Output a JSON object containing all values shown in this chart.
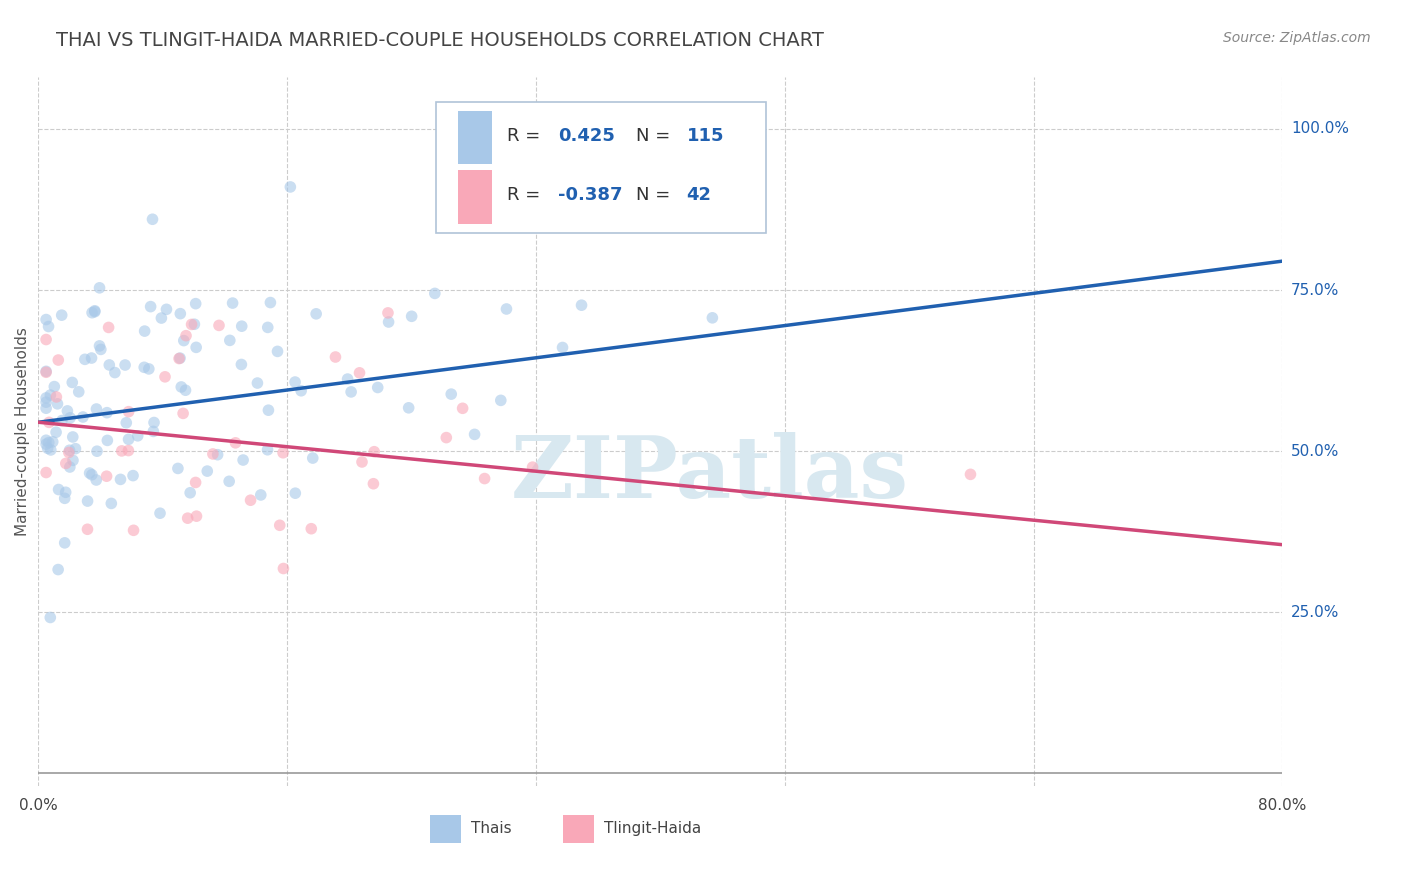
{
  "title": "THAI VS TLINGIT-HAIDA MARRIED-COUPLE HOUSEHOLDS CORRELATION CHART",
  "source": "Source: ZipAtlas.com",
  "ylabel": "Married-couple Households",
  "xlim": [
    0.0,
    0.8
  ],
  "ylim": [
    -0.02,
    1.08
  ],
  "yticks": [
    0.25,
    0.5,
    0.75,
    1.0
  ],
  "ytick_labels": [
    "25.0%",
    "50.0%",
    "75.0%",
    "100.0%"
  ],
  "xticks_grid": [
    0.0,
    0.16,
    0.32,
    0.48,
    0.64,
    0.8
  ],
  "thai_R": 0.425,
  "thai_N": 115,
  "tlingit_R": -0.387,
  "tlingit_N": 42,
  "blue_dot_color": "#a8c8e8",
  "pink_dot_color": "#f9a8b8",
  "blue_line_color": "#2060b0",
  "pink_line_color": "#d04878",
  "blue_label_color": "#2060b0",
  "watermark_color": "#d8e8f0",
  "background_color": "#ffffff",
  "grid_color": "#cccccc",
  "title_color": "#444444",
  "title_fontsize": 14,
  "source_fontsize": 10,
  "legend_fontsize": 13,
  "scatter_alpha": 0.6,
  "scatter_size": 70,
  "blue_line_y0": 0.545,
  "blue_line_y1": 0.795,
  "pink_line_y0": 0.545,
  "pink_line_y1": 0.355
}
